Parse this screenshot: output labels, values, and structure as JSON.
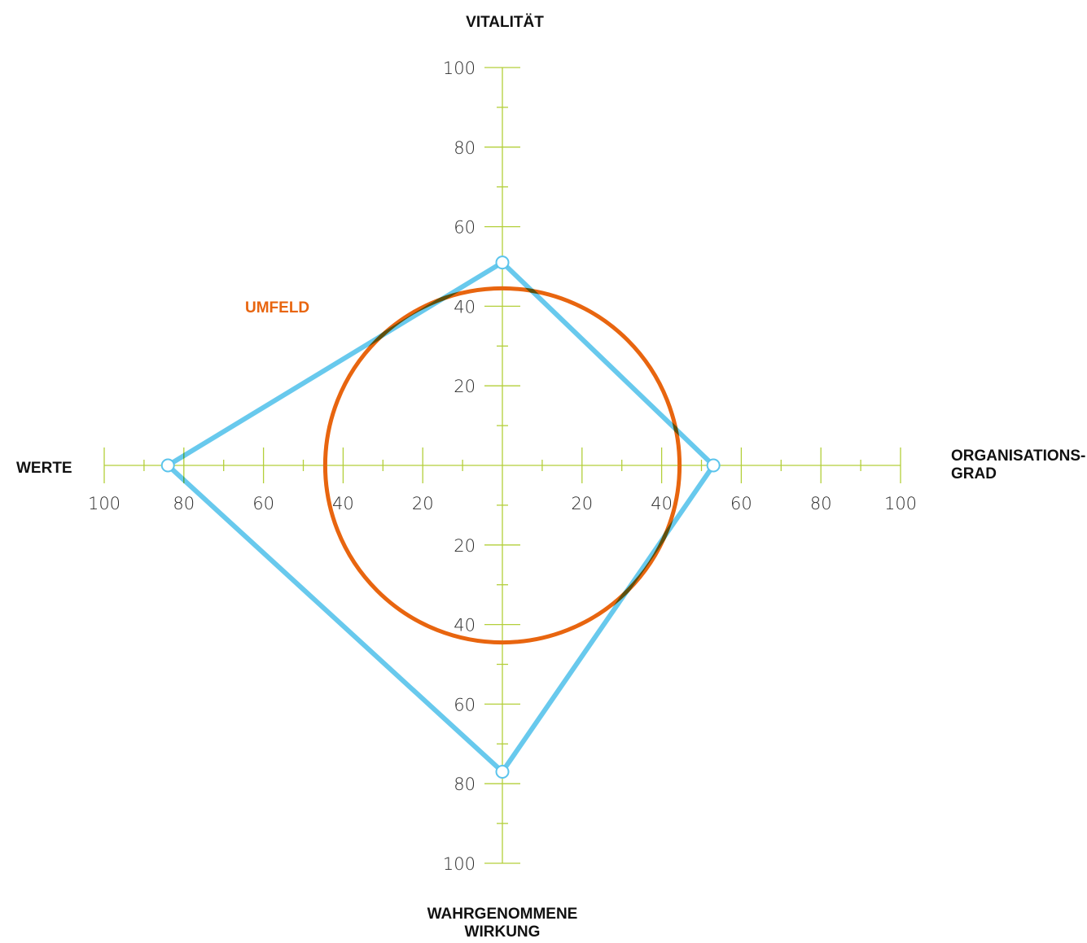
{
  "chart_data": {
    "type": "radar",
    "axes": [
      {
        "key": "top",
        "label_lines": [
          "VITALITÄT"
        ]
      },
      {
        "key": "right",
        "label_lines": [
          "ORGANISATIONS-",
          "GRAD"
        ]
      },
      {
        "key": "bottom",
        "label_lines": [
          "WAHRGENOMMENE",
          "WIRKUNG"
        ]
      },
      {
        "key": "left",
        "label_lines": [
          "WERTE"
        ]
      }
    ],
    "axis_range": [
      0,
      100
    ],
    "major_ticks": [
      20,
      40,
      60,
      80,
      100
    ],
    "minor_step": 10,
    "tick_labels": [
      "20",
      "40",
      "60",
      "80",
      "100"
    ],
    "series": [
      {
        "values": {
          "top": 51,
          "right": 53,
          "bottom": 77,
          "left": 84
        },
        "color": "#5bc4ec"
      }
    ],
    "circle": {
      "label": "UMFELD",
      "radius_value": 44.5,
      "color": "#e8650f"
    },
    "axis_color": "#b3cf3a"
  }
}
